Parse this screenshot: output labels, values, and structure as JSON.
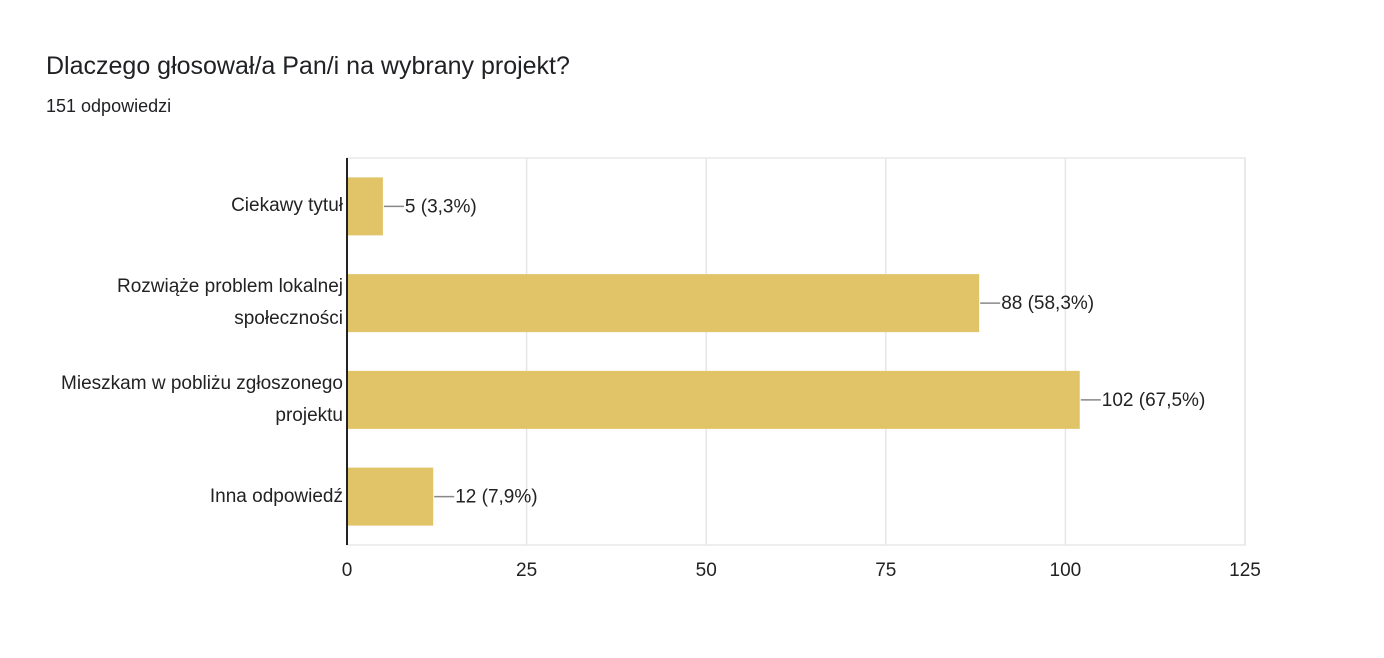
{
  "chart_data": {
    "type": "bar",
    "orientation": "horizontal",
    "title": "Dlaczego głosował/a Pan/i na wybrany projekt?",
    "subtitle": "151 odpowiedzi",
    "categories": [
      "Ciekawy tytuł",
      "Rozwiąże problem lokalnej społeczności",
      "Mieszkam w pobliżu zgłoszonego projektu",
      "Inna odpowiedź"
    ],
    "values": [
      5,
      88,
      102,
      12
    ],
    "value_labels": [
      "5 (3,3%)",
      "88 (58,3%)",
      "102 (67,5%)",
      "12 (7,9%)"
    ],
    "color": "#e2c468",
    "xlim": [
      0,
      125
    ],
    "xticks": [
      0,
      25,
      50,
      75,
      100,
      125
    ],
    "grid": true
  }
}
